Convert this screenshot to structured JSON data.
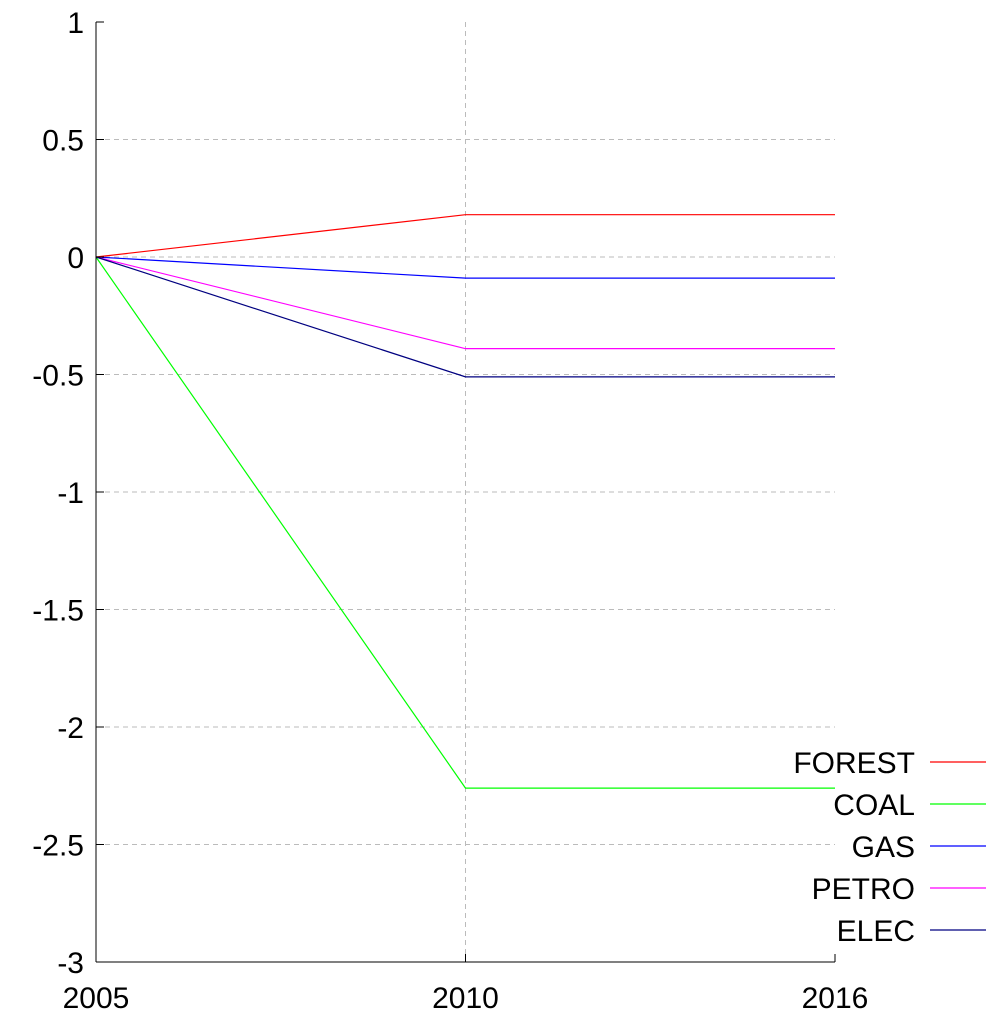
{
  "chart_data": {
    "type": "line",
    "title": "",
    "xlabel": "",
    "ylabel": "",
    "x": [
      2005,
      2010,
      2016
    ],
    "x_tick_labels": [
      "2005",
      "2010",
      "2016"
    ],
    "y_ticks": [
      1,
      0.5,
      0,
      -0.5,
      -1,
      -1.5,
      -2,
      -2.5,
      -3
    ],
    "y_tick_labels": [
      "1",
      "0.5",
      "0",
      "-0.5",
      "-1",
      "-1.5",
      "-2",
      "-2.5",
      "-3"
    ],
    "ylim": [
      -3,
      1
    ],
    "grid": true,
    "legend_position": "bottom-right",
    "series": [
      {
        "name": "FOREST",
        "color": "#ff0000",
        "values": [
          0,
          0.18,
          0.18
        ]
      },
      {
        "name": "COAL",
        "color": "#00ff00",
        "values": [
          0,
          -2.26,
          -2.26
        ]
      },
      {
        "name": "GAS",
        "color": "#0000ff",
        "values": [
          0,
          -0.09,
          -0.09
        ]
      },
      {
        "name": "PETRO",
        "color": "#ff00ff",
        "values": [
          0,
          -0.39,
          -0.39
        ]
      },
      {
        "name": "ELEC",
        "color": "#000080",
        "values": [
          0,
          -0.51,
          -0.51
        ]
      }
    ]
  }
}
